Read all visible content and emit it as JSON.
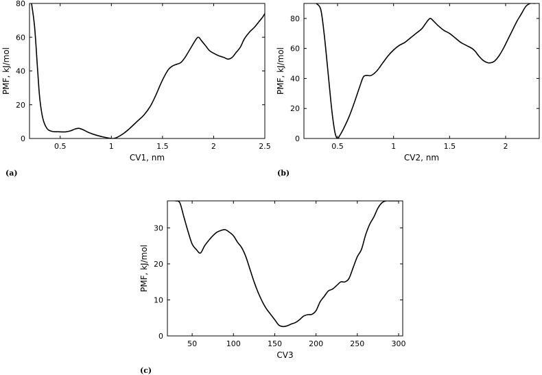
{
  "chart_data": [
    {
      "type": "line",
      "panel_label": "(a)",
      "xlabel": "CV1, nm",
      "ylabel": "PMF, kJ/mol",
      "xlim": [
        0.2,
        2.5
      ],
      "ylim": [
        0,
        80
      ],
      "xticks": [
        0.5,
        1,
        1.5,
        2,
        2.5
      ],
      "xtick_labels": [
        "0.5",
        "1",
        "1.5",
        "2",
        "2.5"
      ],
      "yticks": [
        0,
        20,
        40,
        60,
        80
      ],
      "ytick_labels": [
        "0",
        "20",
        "40",
        "60",
        "80"
      ],
      "grid": false,
      "series": [
        {
          "x": [
            0.22,
            0.25,
            0.28,
            0.3,
            0.33,
            0.37,
            0.42,
            0.48,
            0.55,
            0.6,
            0.64,
            0.68,
            0.72,
            0.78,
            0.85,
            0.92,
            0.98,
            1.02,
            1.06,
            1.12,
            1.18,
            1.25,
            1.32,
            1.38,
            1.43,
            1.48,
            1.52,
            1.56,
            1.6,
            1.64,
            1.68,
            1.72,
            1.77,
            1.82,
            1.85,
            1.88,
            1.92,
            1.96,
            2.0,
            2.05,
            2.1,
            2.14,
            2.18,
            2.22,
            2.26,
            2.3,
            2.35,
            2.4,
            2.44,
            2.48,
            2.5
          ],
          "y": [
            80,
            66,
            40,
            24,
            12,
            6,
            4.2,
            4,
            3.9,
            4.5,
            5.5,
            6,
            5.3,
            3.5,
            2,
            0.9,
            0.2,
            0,
            0.8,
            3,
            6,
            10,
            14,
            19,
            25,
            32,
            37,
            41,
            43,
            44,
            45,
            48,
            53,
            58,
            60,
            58,
            55,
            52,
            50.5,
            49,
            48,
            47,
            48,
            51,
            54,
            59,
            63,
            66,
            69,
            72,
            74
          ]
        }
      ]
    },
    {
      "type": "line",
      "panel_label": "(b)",
      "xlabel": "CV2, nm",
      "ylabel": "PMF, kJ/mol",
      "xlim": [
        0.2,
        2.3
      ],
      "ylim": [
        0,
        90
      ],
      "xticks": [
        0.5,
        1,
        1.5,
        2
      ],
      "xtick_labels": [
        "0.5",
        "1",
        "1.5",
        "2"
      ],
      "yticks": [
        0,
        20,
        40,
        60,
        80
      ],
      "ytick_labels": [
        "0",
        "20",
        "40",
        "60",
        "80"
      ],
      "grid": false,
      "series": [
        {
          "x": [
            0.31,
            0.35,
            0.38,
            0.41,
            0.44,
            0.46,
            0.48,
            0.5,
            0.52,
            0.55,
            0.6,
            0.65,
            0.7,
            0.73,
            0.76,
            0.8,
            0.85,
            0.9,
            0.95,
            1.0,
            1.05,
            1.1,
            1.15,
            1.2,
            1.25,
            1.28,
            1.31,
            1.33,
            1.36,
            1.4,
            1.45,
            1.5,
            1.55,
            1.6,
            1.65,
            1.7,
            1.73,
            1.76,
            1.8,
            1.84,
            1.87,
            1.9,
            1.94,
            1.98,
            2.02,
            2.06,
            2.1,
            2.14,
            2.18,
            2.22,
            2.26
          ],
          "y": [
            90,
            86,
            70,
            48,
            25,
            12,
            3,
            0,
            2,
            6,
            14,
            24,
            35,
            41,
            42,
            42,
            45,
            50,
            55,
            59,
            62,
            64,
            67,
            70,
            73,
            76,
            79,
            80,
            78,
            75,
            72,
            70,
            67,
            64,
            62,
            60,
            58,
            55,
            52,
            50.5,
            50.5,
            51.5,
            55,
            60,
            66,
            72,
            78,
            83,
            88,
            90,
            90
          ]
        }
      ]
    },
    {
      "type": "line",
      "panel_label": "(c)",
      "xlabel": "CV3",
      "ylabel": "PMF, kJ/mol",
      "xlim": [
        20,
        305
      ],
      "ylim": [
        0,
        37.5
      ],
      "xticks": [
        50,
        100,
        150,
        200,
        250,
        300
      ],
      "xtick_labels": [
        "50",
        "100",
        "150",
        "200",
        "250",
        "300"
      ],
      "yticks": [
        0,
        10,
        20,
        30
      ],
      "ytick_labels": [
        "0",
        "10",
        "20",
        "30"
      ],
      "grid": false,
      "series": [
        {
          "x": [
            30,
            35,
            40,
            45,
            50,
            55,
            60,
            65,
            70,
            75,
            80,
            85,
            90,
            95,
            100,
            105,
            110,
            115,
            120,
            125,
            130,
            135,
            140,
            145,
            150,
            155,
            160,
            165,
            170,
            175,
            180,
            185,
            190,
            195,
            200,
            205,
            210,
            215,
            220,
            225,
            230,
            235,
            240,
            245,
            250,
            255,
            260,
            265,
            270,
            275,
            280,
            285,
            290,
            295,
            300
          ],
          "y": [
            37.5,
            37,
            33,
            29,
            25.5,
            24,
            23,
            25,
            26.5,
            27.8,
            28.8,
            29.3,
            29.5,
            28.8,
            27.8,
            26,
            24.5,
            22,
            18.5,
            15,
            12,
            9.5,
            7.5,
            6,
            4.5,
            3,
            2.6,
            2.8,
            3.3,
            3.7,
            4.5,
            5.5,
            5.9,
            6,
            7,
            9.5,
            11,
            12.5,
            13,
            14,
            15,
            15,
            16,
            19,
            22,
            24,
            28,
            31,
            33,
            35.5,
            37,
            37.5,
            37.5,
            37.5,
            37.5
          ]
        }
      ]
    }
  ]
}
